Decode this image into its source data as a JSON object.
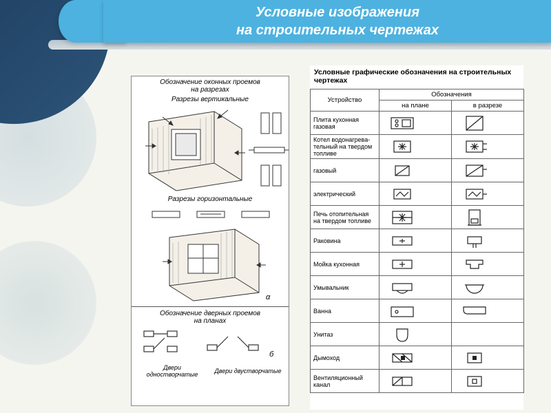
{
  "header": {
    "title_line1": "Условные изображения",
    "title_line2": "на строительных чертежах",
    "banner_color": "#4db2e0",
    "text_color": "#ffffff"
  },
  "left_diagram": {
    "title1": "Обозначение оконных проемов",
    "title1b": "на разрезах",
    "subtitle_vert": "Разрезы вертикальные",
    "subtitle_horiz": "Разрезы горизонтальные",
    "title2": "Обозначение дверных проемов",
    "title2b": "на планах",
    "doors_single": "Двери",
    "doors_single2": "одностворчатые",
    "doors_double": "Двери двустворчатые",
    "label_alpha": "α",
    "label_beta": "б",
    "stroke": "#333333",
    "hatch": "#888888"
  },
  "right_table": {
    "title": "Условные графические обозначения на строительных чертежах",
    "header_device": "Устройство",
    "header_symbols": "Обозначения",
    "header_plan": "на плане",
    "header_section": "в разрезе",
    "rows": [
      {
        "device": "Плита кухонная газовая",
        "plan": "stove-plan",
        "section": "stove-sec"
      },
      {
        "device": "Котел водонагрева- тельный на твердом топливе",
        "plan": "star-box",
        "section": "star-side"
      },
      {
        "device": "газовый",
        "plan": "diag-box",
        "section": "diag-tri"
      },
      {
        "device": "электрический",
        "plan": "zig-box",
        "section": "zig-side"
      },
      {
        "device": "Печь отопительная на твердом топливе",
        "plan": "star-dbl",
        "section": "stove-tall"
      },
      {
        "device": "Раковина",
        "plan": "sink-plan",
        "section": "sink-sec"
      },
      {
        "device": "Мойка кухонная",
        "plan": "sink2-plan",
        "section": "sink2-sec"
      },
      {
        "device": "Умывальник",
        "plan": "wash-plan",
        "section": "wash-sec"
      },
      {
        "device": "Ванна",
        "plan": "bath-plan",
        "section": "bath-sec"
      },
      {
        "device": "Унитаз",
        "plan": "wc-plan",
        "section": ""
      },
      {
        "device": "Дымоход",
        "plan": "flue-plan",
        "section": "flue-sec"
      },
      {
        "device": "Вентиляционный канал",
        "plan": "vent-plan",
        "section": "vent-sec"
      }
    ],
    "border": "#666666",
    "stroke": "#222222"
  },
  "background": {
    "circle_dark": "#234a68",
    "circle_light": "#bcd0d6"
  }
}
